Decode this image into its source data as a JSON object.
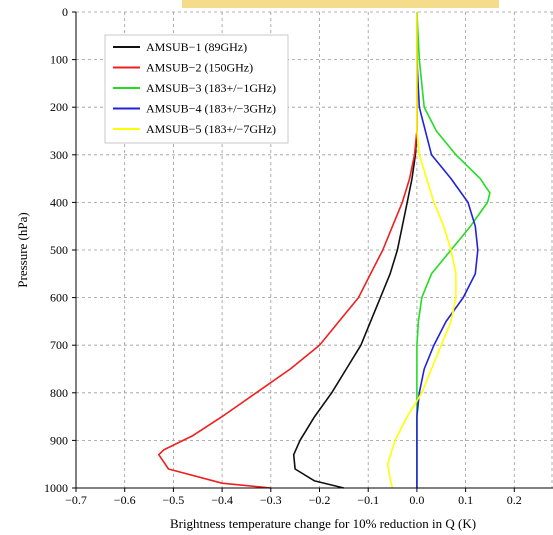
{
  "chart_data": {
    "type": "line",
    "title": "",
    "xlabel": "Brightness temperature change for 10% reduction in Q (K)",
    "ylabel": "Pressure (hPa)",
    "xlim": [
      -0.7,
      0.3
    ],
    "ylim": [
      1000,
      0
    ],
    "y_inverted": true,
    "grid": true,
    "legend_position": "top-left",
    "x_ticks": [
      "−0.7",
      "−0.6",
      "−0.5",
      "−0.4",
      "−0.3",
      "−0.2",
      "−0.1",
      "0.0",
      "0.1",
      "0.2"
    ],
    "x_tick_values": [
      -0.7,
      -0.6,
      -0.5,
      -0.4,
      -0.3,
      -0.2,
      -0.1,
      0.0,
      0.1,
      0.2
    ],
    "y_ticks": [
      "0",
      "100",
      "200",
      "300",
      "400",
      "500",
      "600",
      "700",
      "800",
      "900",
      "1000"
    ],
    "y_tick_values": [
      0,
      100,
      200,
      300,
      400,
      500,
      600,
      700,
      800,
      900,
      1000
    ],
    "banner_color": "#f5dc8a",
    "series": [
      {
        "name": "AMSUB−1 (89GHz)",
        "color": "#111111",
        "points": [
          [
            0.0,
            0
          ],
          [
            0.0,
            250
          ],
          [
            -0.003,
            300
          ],
          [
            -0.01,
            350
          ],
          [
            -0.02,
            400
          ],
          [
            -0.03,
            450
          ],
          [
            -0.04,
            500
          ],
          [
            -0.055,
            550
          ],
          [
            -0.075,
            600
          ],
          [
            -0.095,
            650
          ],
          [
            -0.115,
            700
          ],
          [
            -0.145,
            750
          ],
          [
            -0.175,
            800
          ],
          [
            -0.21,
            850
          ],
          [
            -0.24,
            900
          ],
          [
            -0.253,
            930
          ],
          [
            -0.25,
            960
          ],
          [
            -0.21,
            985
          ],
          [
            -0.15,
            1000
          ]
        ]
      },
      {
        "name": "AMSUB−2 (150GHz)",
        "color": "#ee2020",
        "points": [
          [
            0.0,
            0
          ],
          [
            0.0,
            250
          ],
          [
            -0.005,
            300
          ],
          [
            -0.015,
            350
          ],
          [
            -0.03,
            400
          ],
          [
            -0.05,
            450
          ],
          [
            -0.07,
            500
          ],
          [
            -0.095,
            550
          ],
          [
            -0.12,
            600
          ],
          [
            -0.16,
            650
          ],
          [
            -0.2,
            700
          ],
          [
            -0.26,
            750
          ],
          [
            -0.33,
            800
          ],
          [
            -0.4,
            850
          ],
          [
            -0.46,
            890
          ],
          [
            -0.52,
            920
          ],
          [
            -0.53,
            930
          ],
          [
            -0.51,
            960
          ],
          [
            -0.4,
            990
          ],
          [
            -0.3,
            1000
          ]
        ]
      },
      {
        "name": "AMSUB−3 (183+/−1GHz)",
        "color": "#22dd22",
        "points": [
          [
            0.0,
            0
          ],
          [
            0.005,
            100
          ],
          [
            0.015,
            200
          ],
          [
            0.04,
            250
          ],
          [
            0.08,
            300
          ],
          [
            0.13,
            350
          ],
          [
            0.15,
            380
          ],
          [
            0.145,
            400
          ],
          [
            0.11,
            450
          ],
          [
            0.07,
            500
          ],
          [
            0.03,
            550
          ],
          [
            0.01,
            600
          ],
          [
            0.003,
            650
          ],
          [
            0.0,
            700
          ],
          [
            0.0,
            800
          ],
          [
            0.0,
            1000
          ]
        ]
      },
      {
        "name": "AMSUB−4 (183+/−3GHz)",
        "color": "#2222dd",
        "points": [
          [
            0.0,
            0
          ],
          [
            0.0,
            100
          ],
          [
            0.005,
            200
          ],
          [
            0.03,
            300
          ],
          [
            0.07,
            350
          ],
          [
            0.105,
            400
          ],
          [
            0.12,
            450
          ],
          [
            0.125,
            500
          ],
          [
            0.12,
            550
          ],
          [
            0.095,
            600
          ],
          [
            0.06,
            650
          ],
          [
            0.035,
            700
          ],
          [
            0.015,
            750
          ],
          [
            0.005,
            800
          ],
          [
            0.0,
            850
          ],
          [
            0.0,
            1000
          ]
        ]
      },
      {
        "name": "AMSUB−5 (183+/−7GHz)",
        "color": "#ffff00",
        "points": [
          [
            0.0,
            0
          ],
          [
            0.0,
            100
          ],
          [
            0.0,
            200
          ],
          [
            0.0,
            250
          ],
          [
            0.005,
            300
          ],
          [
            0.02,
            350
          ],
          [
            0.035,
            400
          ],
          [
            0.055,
            450
          ],
          [
            0.07,
            500
          ],
          [
            0.08,
            550
          ],
          [
            0.08,
            600
          ],
          [
            0.07,
            650
          ],
          [
            0.05,
            700
          ],
          [
            0.03,
            750
          ],
          [
            0.01,
            800
          ],
          [
            -0.02,
            850
          ],
          [
            -0.045,
            900
          ],
          [
            -0.06,
            950
          ],
          [
            -0.055,
            980
          ],
          [
            -0.05,
            1000
          ]
        ]
      }
    ]
  }
}
